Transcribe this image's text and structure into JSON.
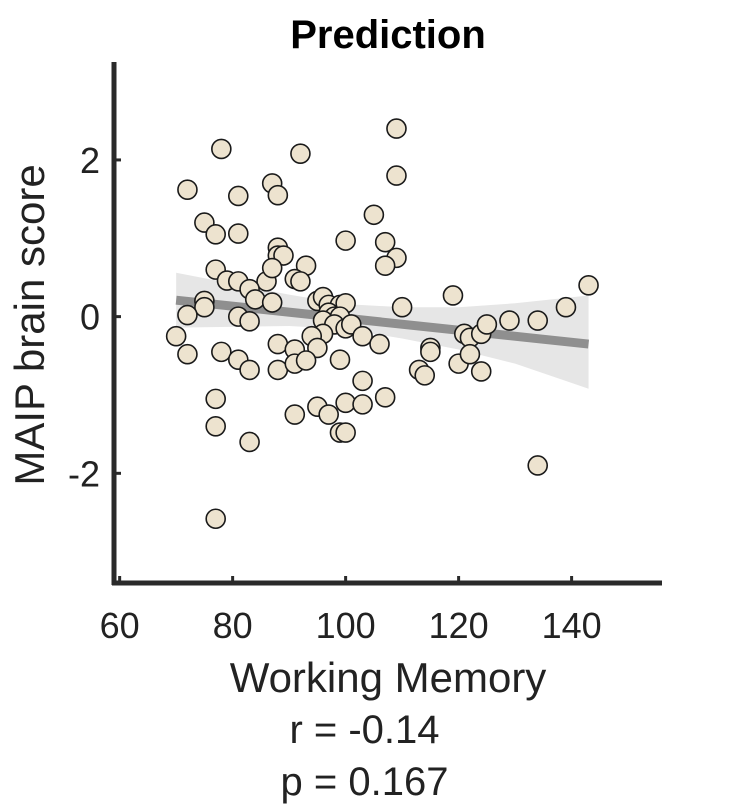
{
  "chart_data": {
    "type": "scatter",
    "title": "Prediction",
    "xlabel": "Working Memory",
    "ylabel": "MAIP brain score",
    "xlim": [
      59,
      156
    ],
    "ylim": [
      -3.4,
      3.25
    ],
    "xticks": [
      60,
      80,
      100,
      120,
      140
    ],
    "yticks": [
      -2,
      0,
      2
    ],
    "grid": false,
    "legend": "none",
    "points": [
      [
        72,
        1.62
      ],
      [
        78,
        2.14
      ],
      [
        81,
        1.54
      ],
      [
        92,
        2.08
      ],
      [
        109,
        2.4
      ],
      [
        109,
        1.8
      ],
      [
        87,
        1.7
      ],
      [
        88,
        1.55
      ],
      [
        75,
        1.2
      ],
      [
        77,
        1.05
      ],
      [
        81,
        1.06
      ],
      [
        105,
        1.3
      ],
      [
        100,
        0.97
      ],
      [
        107,
        0.95
      ],
      [
        109,
        0.75
      ],
      [
        107,
        0.65
      ],
      [
        88,
        0.88
      ],
      [
        88,
        0.78
      ],
      [
        89,
        0.78
      ],
      [
        86,
        0.45
      ],
      [
        87,
        0.62
      ],
      [
        93,
        0.65
      ],
      [
        91,
        0.48
      ],
      [
        92,
        0.45
      ],
      [
        77,
        0.6
      ],
      [
        79,
        0.46
      ],
      [
        81,
        0.45
      ],
      [
        83,
        0.35
      ],
      [
        84,
        0.22
      ],
      [
        87,
        0.18
      ],
      [
        75,
        0.2
      ],
      [
        75,
        0.12
      ],
      [
        72,
        0.02
      ],
      [
        81,
        0.0
      ],
      [
        83,
        -0.06
      ],
      [
        70,
        -0.25
      ],
      [
        72,
        -0.48
      ],
      [
        95,
        0.2
      ],
      [
        96,
        0.25
      ],
      [
        97,
        0.15
      ],
      [
        99,
        0.15
      ],
      [
        100,
        0.17
      ],
      [
        97,
        0.05
      ],
      [
        98,
        0.0
      ],
      [
        99,
        0.0
      ],
      [
        96,
        -0.05
      ],
      [
        98,
        -0.1
      ],
      [
        100,
        -0.15
      ],
      [
        101,
        -0.1
      ],
      [
        96,
        -0.22
      ],
      [
        94,
        -0.25
      ],
      [
        88,
        -0.35
      ],
      [
        91,
        -0.42
      ],
      [
        95,
        -0.4
      ],
      [
        99,
        -0.55
      ],
      [
        103,
        -0.25
      ],
      [
        106,
        -0.35
      ],
      [
        78,
        -0.45
      ],
      [
        81,
        -0.55
      ],
      [
        83,
        -0.68
      ],
      [
        88,
        -0.68
      ],
      [
        91,
        -0.6
      ],
      [
        93,
        -0.56
      ],
      [
        110,
        0.12
      ],
      [
        119,
        0.27
      ],
      [
        121,
        -0.22
      ],
      [
        122,
        -0.27
      ],
      [
        124,
        -0.22
      ],
      [
        125,
        -0.1
      ],
      [
        129,
        -0.05
      ],
      [
        134,
        -0.05
      ],
      [
        139,
        0.12
      ],
      [
        143,
        0.4
      ],
      [
        113,
        -0.68
      ],
      [
        114,
        -0.75
      ],
      [
        115,
        -0.4
      ],
      [
        115,
        -0.45
      ],
      [
        120,
        -0.6
      ],
      [
        122,
        -0.48
      ],
      [
        124,
        -0.7
      ],
      [
        103,
        -0.82
      ],
      [
        107,
        -1.03
      ],
      [
        100,
        -1.1
      ],
      [
        103,
        -1.12
      ],
      [
        95,
        -1.15
      ],
      [
        97,
        -1.25
      ],
      [
        91,
        -1.25
      ],
      [
        77,
        -1.05
      ],
      [
        77,
        -1.4
      ],
      [
        83,
        -1.6
      ],
      [
        99,
        -1.48
      ],
      [
        100,
        -1.48
      ],
      [
        77,
        -2.58
      ],
      [
        134,
        -1.9
      ]
    ],
    "fit_line": {
      "x": [
        70,
        143
      ],
      "y": [
        0.21,
        -0.35
      ]
    },
    "confidence_band": {
      "x": [
        70,
        90,
        100,
        110,
        120,
        130,
        143
      ],
      "upper": [
        0.56,
        0.28,
        0.16,
        0.12,
        0.12,
        0.17,
        0.27
      ],
      "lower": [
        -0.14,
        -0.12,
        -0.16,
        -0.28,
        -0.42,
        -0.6,
        -0.92
      ]
    },
    "colors": {
      "point_fill": "#ede3cf",
      "point_stroke": "#1a1a1a",
      "fit_line": "#8f8f8f",
      "band": "#e6e6e6",
      "axis": "#2a2a2a"
    }
  },
  "stats": {
    "r": "r = -0.14",
    "p": "p = 0.167"
  }
}
